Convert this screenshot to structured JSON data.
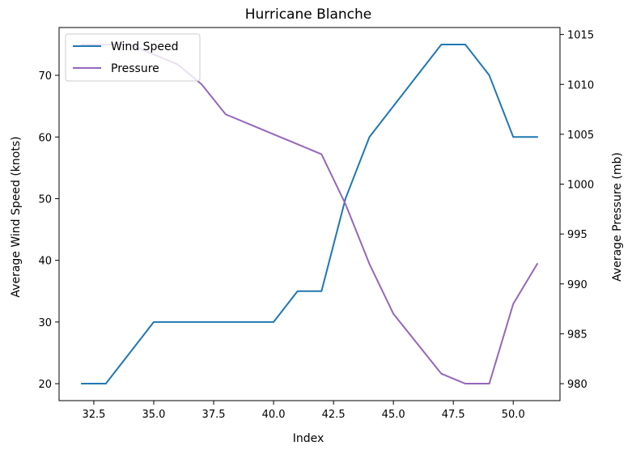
{
  "chart_data": {
    "type": "line",
    "title": "Hurricane Blanche",
    "xlabel": "Index",
    "ylabel_left": "Average Wind Speed (knots)",
    "ylabel_right": "Average Pressure (mb)",
    "xlim": [
      31.05,
      51.95
    ],
    "ylim_left": [
      17.25,
      77.75
    ],
    "ylim_right": [
      978.3,
      1015.7
    ],
    "xticks": [
      32.5,
      35.0,
      37.5,
      40.0,
      42.5,
      45.0,
      47.5,
      50.0
    ],
    "xtick_labels": [
      "32.5",
      "35.0",
      "37.5",
      "40.0",
      "42.5",
      "45.0",
      "47.5",
      "50.0"
    ],
    "yticks_left": [
      20,
      30,
      40,
      50,
      60,
      70
    ],
    "ytick_labels_left": [
      "20",
      "30",
      "40",
      "50",
      "60",
      "70"
    ],
    "yticks_right": [
      980,
      985,
      990,
      995,
      1000,
      1005,
      1010,
      1015
    ],
    "ytick_labels_right": [
      "980",
      "985",
      "990",
      "995",
      "1000",
      "1005",
      "1010",
      "1015"
    ],
    "grid": false,
    "legend_position": "top-left",
    "series": [
      {
        "name": "Wind Speed",
        "axis": "left",
        "color": "#1f77b4",
        "x": [
          32,
          33,
          34,
          35,
          36,
          37,
          38,
          39,
          40,
          41,
          42,
          43,
          44,
          45,
          46,
          47,
          48,
          49,
          50,
          51
        ],
        "values": [
          20,
          20,
          25,
          30,
          30,
          30,
          30,
          30,
          30,
          35,
          35,
          50,
          60,
          65,
          70,
          75,
          75,
          70,
          60,
          60
        ]
      },
      {
        "name": "Pressure",
        "axis": "right",
        "color": "#9467bd",
        "x": [
          32,
          33,
          34,
          35,
          36,
          37,
          38,
          39,
          40,
          41,
          42,
          43,
          44,
          45,
          46,
          47,
          48,
          49,
          50,
          51
        ],
        "values": [
          1014,
          1014,
          1014,
          1013,
          1012,
          1010,
          1007,
          1006,
          1005,
          1004,
          1003,
          998,
          992,
          987,
          984,
          981,
          980,
          980,
          988,
          992
        ]
      }
    ]
  }
}
